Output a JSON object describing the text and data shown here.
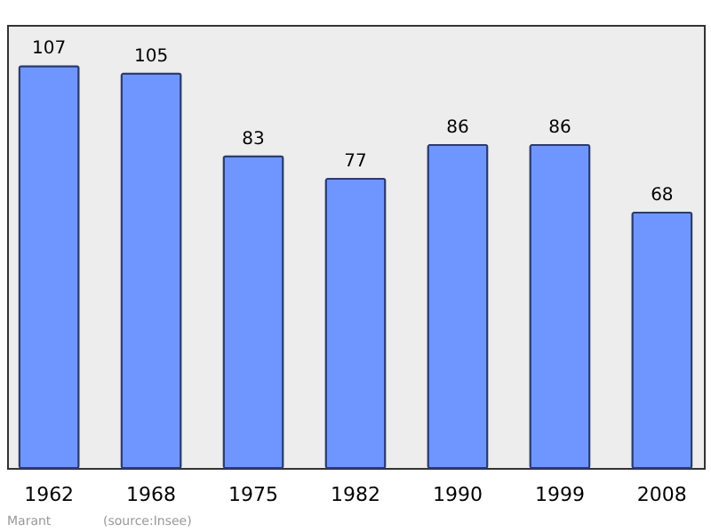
{
  "chart_data": {
    "type": "bar",
    "categories": [
      "1962",
      "1968",
      "1975",
      "1982",
      "1990",
      "1999",
      "2008"
    ],
    "values": [
      107,
      105,
      83,
      77,
      86,
      86,
      68
    ],
    "color": "#6f96ff",
    "ylim": [
      0,
      118
    ],
    "data_labels": true,
    "annotations": [
      "Marant",
      "(source:Insee)"
    ]
  }
}
